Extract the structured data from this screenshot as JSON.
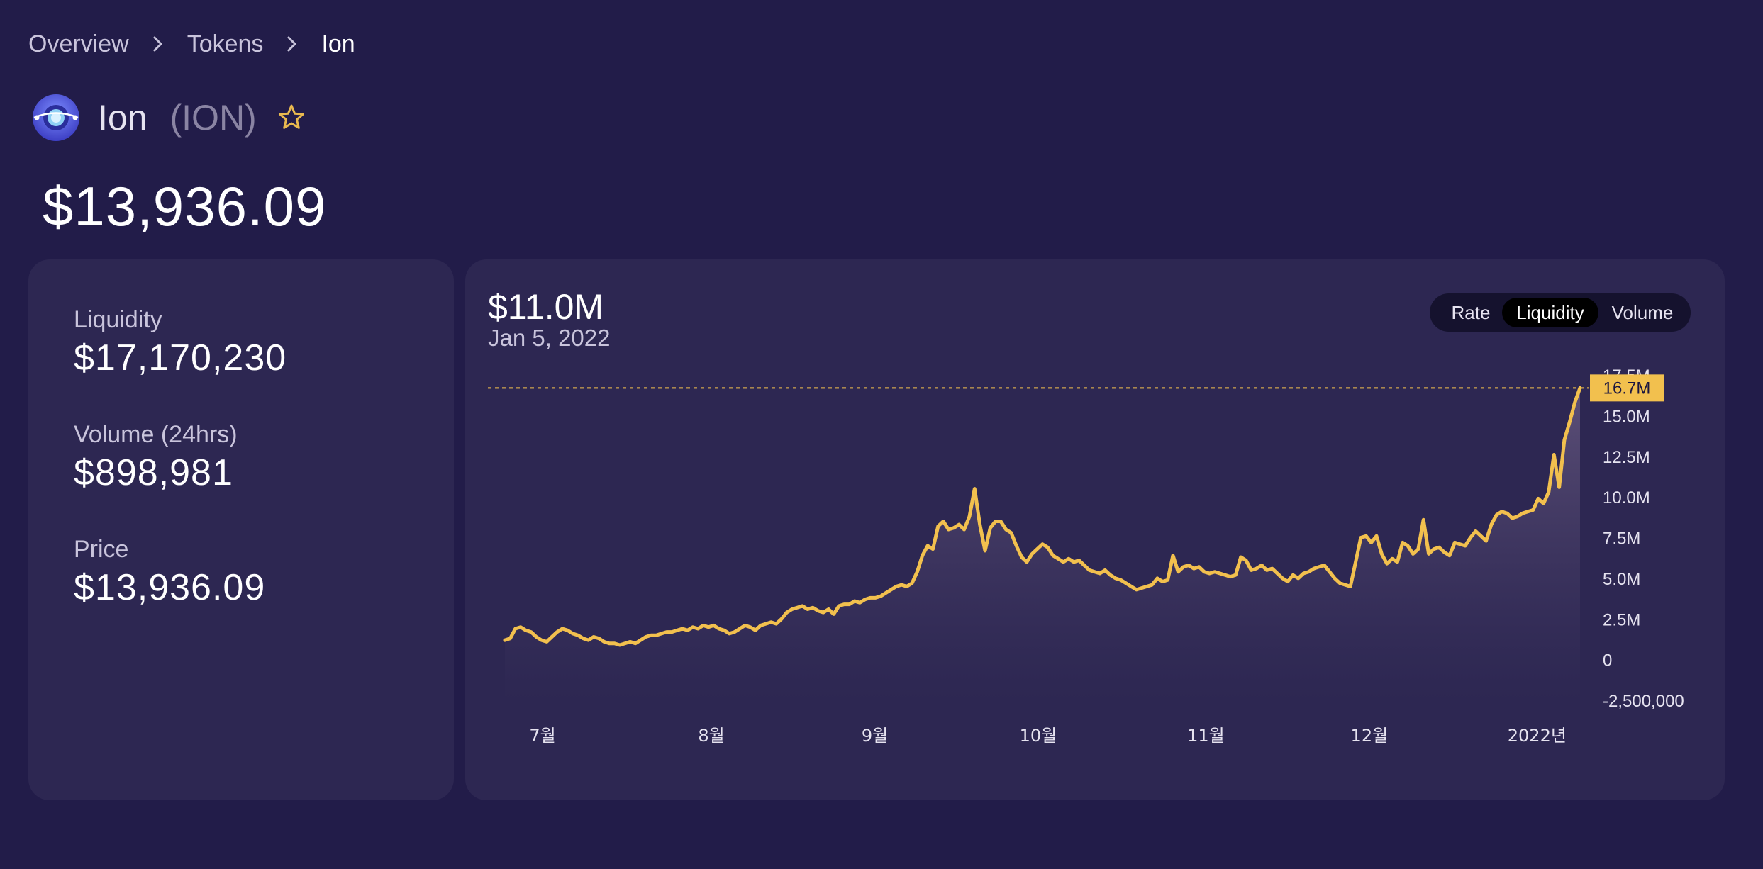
{
  "breadcrumb": {
    "items": [
      "Overview",
      "Tokens"
    ],
    "current": "Ion"
  },
  "token": {
    "name": "Ion",
    "symbol": "(ION)",
    "price": "$13,936.09",
    "logo_icon": "ion-logo-icon",
    "favorite_icon": "star-outline-icon"
  },
  "stats": {
    "liquidity_label": "Liquidity",
    "liquidity_value": "$17,170,230",
    "volume_label": "Volume (24hrs)",
    "volume_value": "$898,981",
    "price_label": "Price",
    "price_value": "$13,936.09"
  },
  "chart_header": {
    "value": "$11.0M",
    "date": "Jan 5, 2022"
  },
  "chart_toggle": {
    "options": [
      "Rate",
      "Liquidity",
      "Volume"
    ],
    "selected": "Liquidity"
  },
  "colors": {
    "background": "#221c49",
    "card": "#2d2752",
    "line": "#f2c04e",
    "marker": "#f2c04e"
  },
  "chart_data": {
    "type": "area",
    "x_ticks": [
      "7월",
      "8월",
      "9월",
      "10월",
      "11월",
      "12월",
      "2022년"
    ],
    "x_tick_positions": [
      0.035,
      0.192,
      0.344,
      0.496,
      0.652,
      0.804,
      0.96
    ],
    "y_ticks": [
      "-2,500,000",
      "0",
      "2.5M",
      "5.0M",
      "7.5M",
      "10.0M",
      "12.5M",
      "15.0M",
      "17.5M"
    ],
    "y_tick_values": [
      -2500000,
      0,
      2500000,
      5000000,
      7500000,
      10000000,
      12500000,
      15000000,
      17500000
    ],
    "ylim": [
      -2500000,
      17500000
    ],
    "current_marker": {
      "label": "16.7M",
      "value": 16700000
    },
    "values": [
      1.2,
      1.3,
      1.9,
      2.0,
      1.8,
      1.7,
      1.4,
      1.2,
      1.1,
      1.4,
      1.7,
      1.9,
      1.8,
      1.6,
      1.5,
      1.3,
      1.2,
      1.4,
      1.3,
      1.1,
      1.0,
      1.0,
      0.9,
      1.0,
      1.1,
      1.0,
      1.2,
      1.4,
      1.5,
      1.5,
      1.6,
      1.7,
      1.7,
      1.8,
      1.9,
      1.8,
      2.0,
      1.9,
      2.1,
      2.0,
      2.1,
      1.9,
      1.8,
      1.6,
      1.7,
      1.9,
      2.1,
      2.0,
      1.8,
      2.1,
      2.2,
      2.3,
      2.2,
      2.5,
      2.9,
      3.1,
      3.2,
      3.3,
      3.1,
      3.2,
      3.0,
      2.9,
      3.1,
      2.8,
      3.3,
      3.4,
      3.4,
      3.6,
      3.5,
      3.7,
      3.8,
      3.8,
      3.9,
      4.1,
      4.3,
      4.5,
      4.6,
      4.5,
      4.7,
      5.4,
      6.4,
      7.0,
      6.8,
      8.2,
      8.5,
      8.0,
      8.1,
      8.3,
      8.0,
      8.8,
      10.5,
      8.3,
      6.7,
      8.1,
      8.5,
      8.5,
      8.0,
      7.8,
      7.0,
      6.3,
      6.0,
      6.5,
      6.8,
      7.1,
      6.9,
      6.4,
      6.2,
      6.0,
      6.2,
      6.0,
      6.1,
      5.8,
      5.5,
      5.4,
      5.3,
      5.5,
      5.2,
      5.0,
      4.9,
      4.7,
      4.5,
      4.3,
      4.4,
      4.5,
      4.6,
      5.0,
      4.8,
      4.9,
      6.4,
      5.4,
      5.7,
      5.8,
      5.6,
      5.7,
      5.4,
      5.3,
      5.4,
      5.3,
      5.2,
      5.1,
      5.2,
      6.3,
      6.1,
      5.5,
      5.6,
      5.8,
      5.5,
      5.6,
      5.3,
      5.0,
      4.8,
      5.2,
      5.0,
      5.3,
      5.4,
      5.6,
      5.7,
      5.8,
      5.4,
      5.0,
      4.7,
      4.6,
      4.5,
      6.0,
      7.5,
      7.6,
      7.2,
      7.6,
      6.5,
      5.9,
      6.2,
      6.0,
      7.2,
      7.0,
      6.5,
      6.8,
      8.6,
      6.5,
      6.8,
      6.9,
      6.6,
      6.4,
      7.2,
      7.1,
      7.0,
      7.5,
      7.9,
      7.6,
      7.3,
      8.3,
      8.9,
      9.1,
      9.0,
      8.7,
      8.8,
      9.0,
      9.1,
      9.2,
      9.9,
      9.6,
      10.3,
      12.6,
      10.6,
      13.5,
      14.6,
      15.8,
      16.7
    ]
  }
}
